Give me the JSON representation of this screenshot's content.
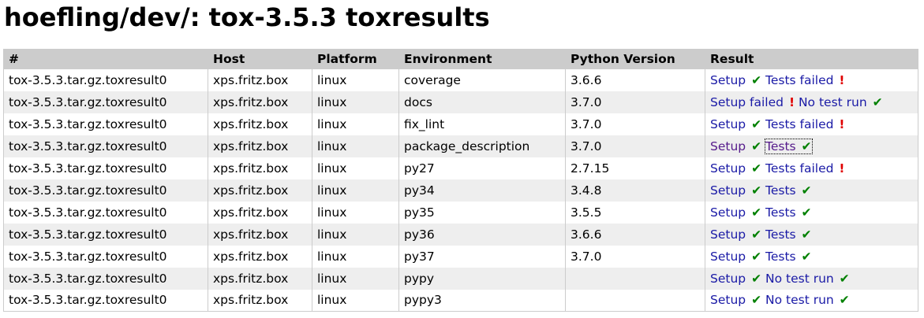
{
  "page": {
    "title": "hoefling/dev/: tox-3.5.3 toxresults"
  },
  "table": {
    "headers": [
      "#",
      "Host",
      "Platform",
      "Environment",
      "Python Version",
      "Result"
    ],
    "rows": [
      {
        "name": "tox-3.5.3.tar.gz.toxresult0",
        "host": "xps.fritz.box",
        "platform": "linux",
        "env": "coverage",
        "python": "3.6.6",
        "setup": {
          "label": "Setup",
          "status": "ok"
        },
        "tests": {
          "label": "Tests failed",
          "status": "fail"
        }
      },
      {
        "name": "tox-3.5.3.tar.gz.toxresult0",
        "host": "xps.fritz.box",
        "platform": "linux",
        "env": "docs",
        "python": "3.7.0",
        "setup": {
          "label": "Setup failed",
          "status": "fail"
        },
        "tests": {
          "label": "No test run",
          "status": "ok"
        }
      },
      {
        "name": "tox-3.5.3.tar.gz.toxresult0",
        "host": "xps.fritz.box",
        "platform": "linux",
        "env": "fix_lint",
        "python": "3.7.0",
        "setup": {
          "label": "Setup",
          "status": "ok"
        },
        "tests": {
          "label": "Tests failed",
          "status": "fail"
        }
      },
      {
        "name": "tox-3.5.3.tar.gz.toxresult0",
        "host": "xps.fritz.box",
        "platform": "linux",
        "env": "package_description",
        "python": "3.7.0",
        "setup": {
          "label": "Setup",
          "status": "ok",
          "visited": true
        },
        "tests": {
          "label": "Tests",
          "status": "ok",
          "visited": true,
          "focused": true
        }
      },
      {
        "name": "tox-3.5.3.tar.gz.toxresult0",
        "host": "xps.fritz.box",
        "platform": "linux",
        "env": "py27",
        "python": "2.7.15",
        "setup": {
          "label": "Setup",
          "status": "ok"
        },
        "tests": {
          "label": "Tests failed",
          "status": "fail"
        }
      },
      {
        "name": "tox-3.5.3.tar.gz.toxresult0",
        "host": "xps.fritz.box",
        "platform": "linux",
        "env": "py34",
        "python": "3.4.8",
        "setup": {
          "label": "Setup",
          "status": "ok"
        },
        "tests": {
          "label": "Tests",
          "status": "ok"
        }
      },
      {
        "name": "tox-3.5.3.tar.gz.toxresult0",
        "host": "xps.fritz.box",
        "platform": "linux",
        "env": "py35",
        "python": "3.5.5",
        "setup": {
          "label": "Setup",
          "status": "ok"
        },
        "tests": {
          "label": "Tests",
          "status": "ok"
        }
      },
      {
        "name": "tox-3.5.3.tar.gz.toxresult0",
        "host": "xps.fritz.box",
        "platform": "linux",
        "env": "py36",
        "python": "3.6.6",
        "setup": {
          "label": "Setup",
          "status": "ok"
        },
        "tests": {
          "label": "Tests",
          "status": "ok"
        }
      },
      {
        "name": "tox-3.5.3.tar.gz.toxresult0",
        "host": "xps.fritz.box",
        "platform": "linux",
        "env": "py37",
        "python": "3.7.0",
        "setup": {
          "label": "Setup",
          "status": "ok"
        },
        "tests": {
          "label": "Tests",
          "status": "ok"
        }
      },
      {
        "name": "tox-3.5.3.tar.gz.toxresult0",
        "host": "xps.fritz.box",
        "platform": "linux",
        "env": "pypy",
        "python": "",
        "setup": {
          "label": "Setup",
          "status": "ok"
        },
        "tests": {
          "label": "No test run",
          "status": "ok"
        }
      },
      {
        "name": "tox-3.5.3.tar.gz.toxresult0",
        "host": "xps.fritz.box",
        "platform": "linux",
        "env": "pypy3",
        "python": "",
        "setup": {
          "label": "Setup",
          "status": "ok"
        },
        "tests": {
          "label": "No test run",
          "status": "ok"
        }
      }
    ]
  },
  "icons": {
    "ok": {
      "glyph": "✔",
      "name": "checkmark-icon",
      "color": "#008000"
    },
    "fail": {
      "glyph": "!",
      "name": "exclamation-icon",
      "color": "#e00000"
    }
  },
  "colors": {
    "link": "#1a1aa6",
    "link_visited": "#551a8b",
    "header_bg": "#cccccc",
    "row_alt_bg": "#eeeeee"
  }
}
